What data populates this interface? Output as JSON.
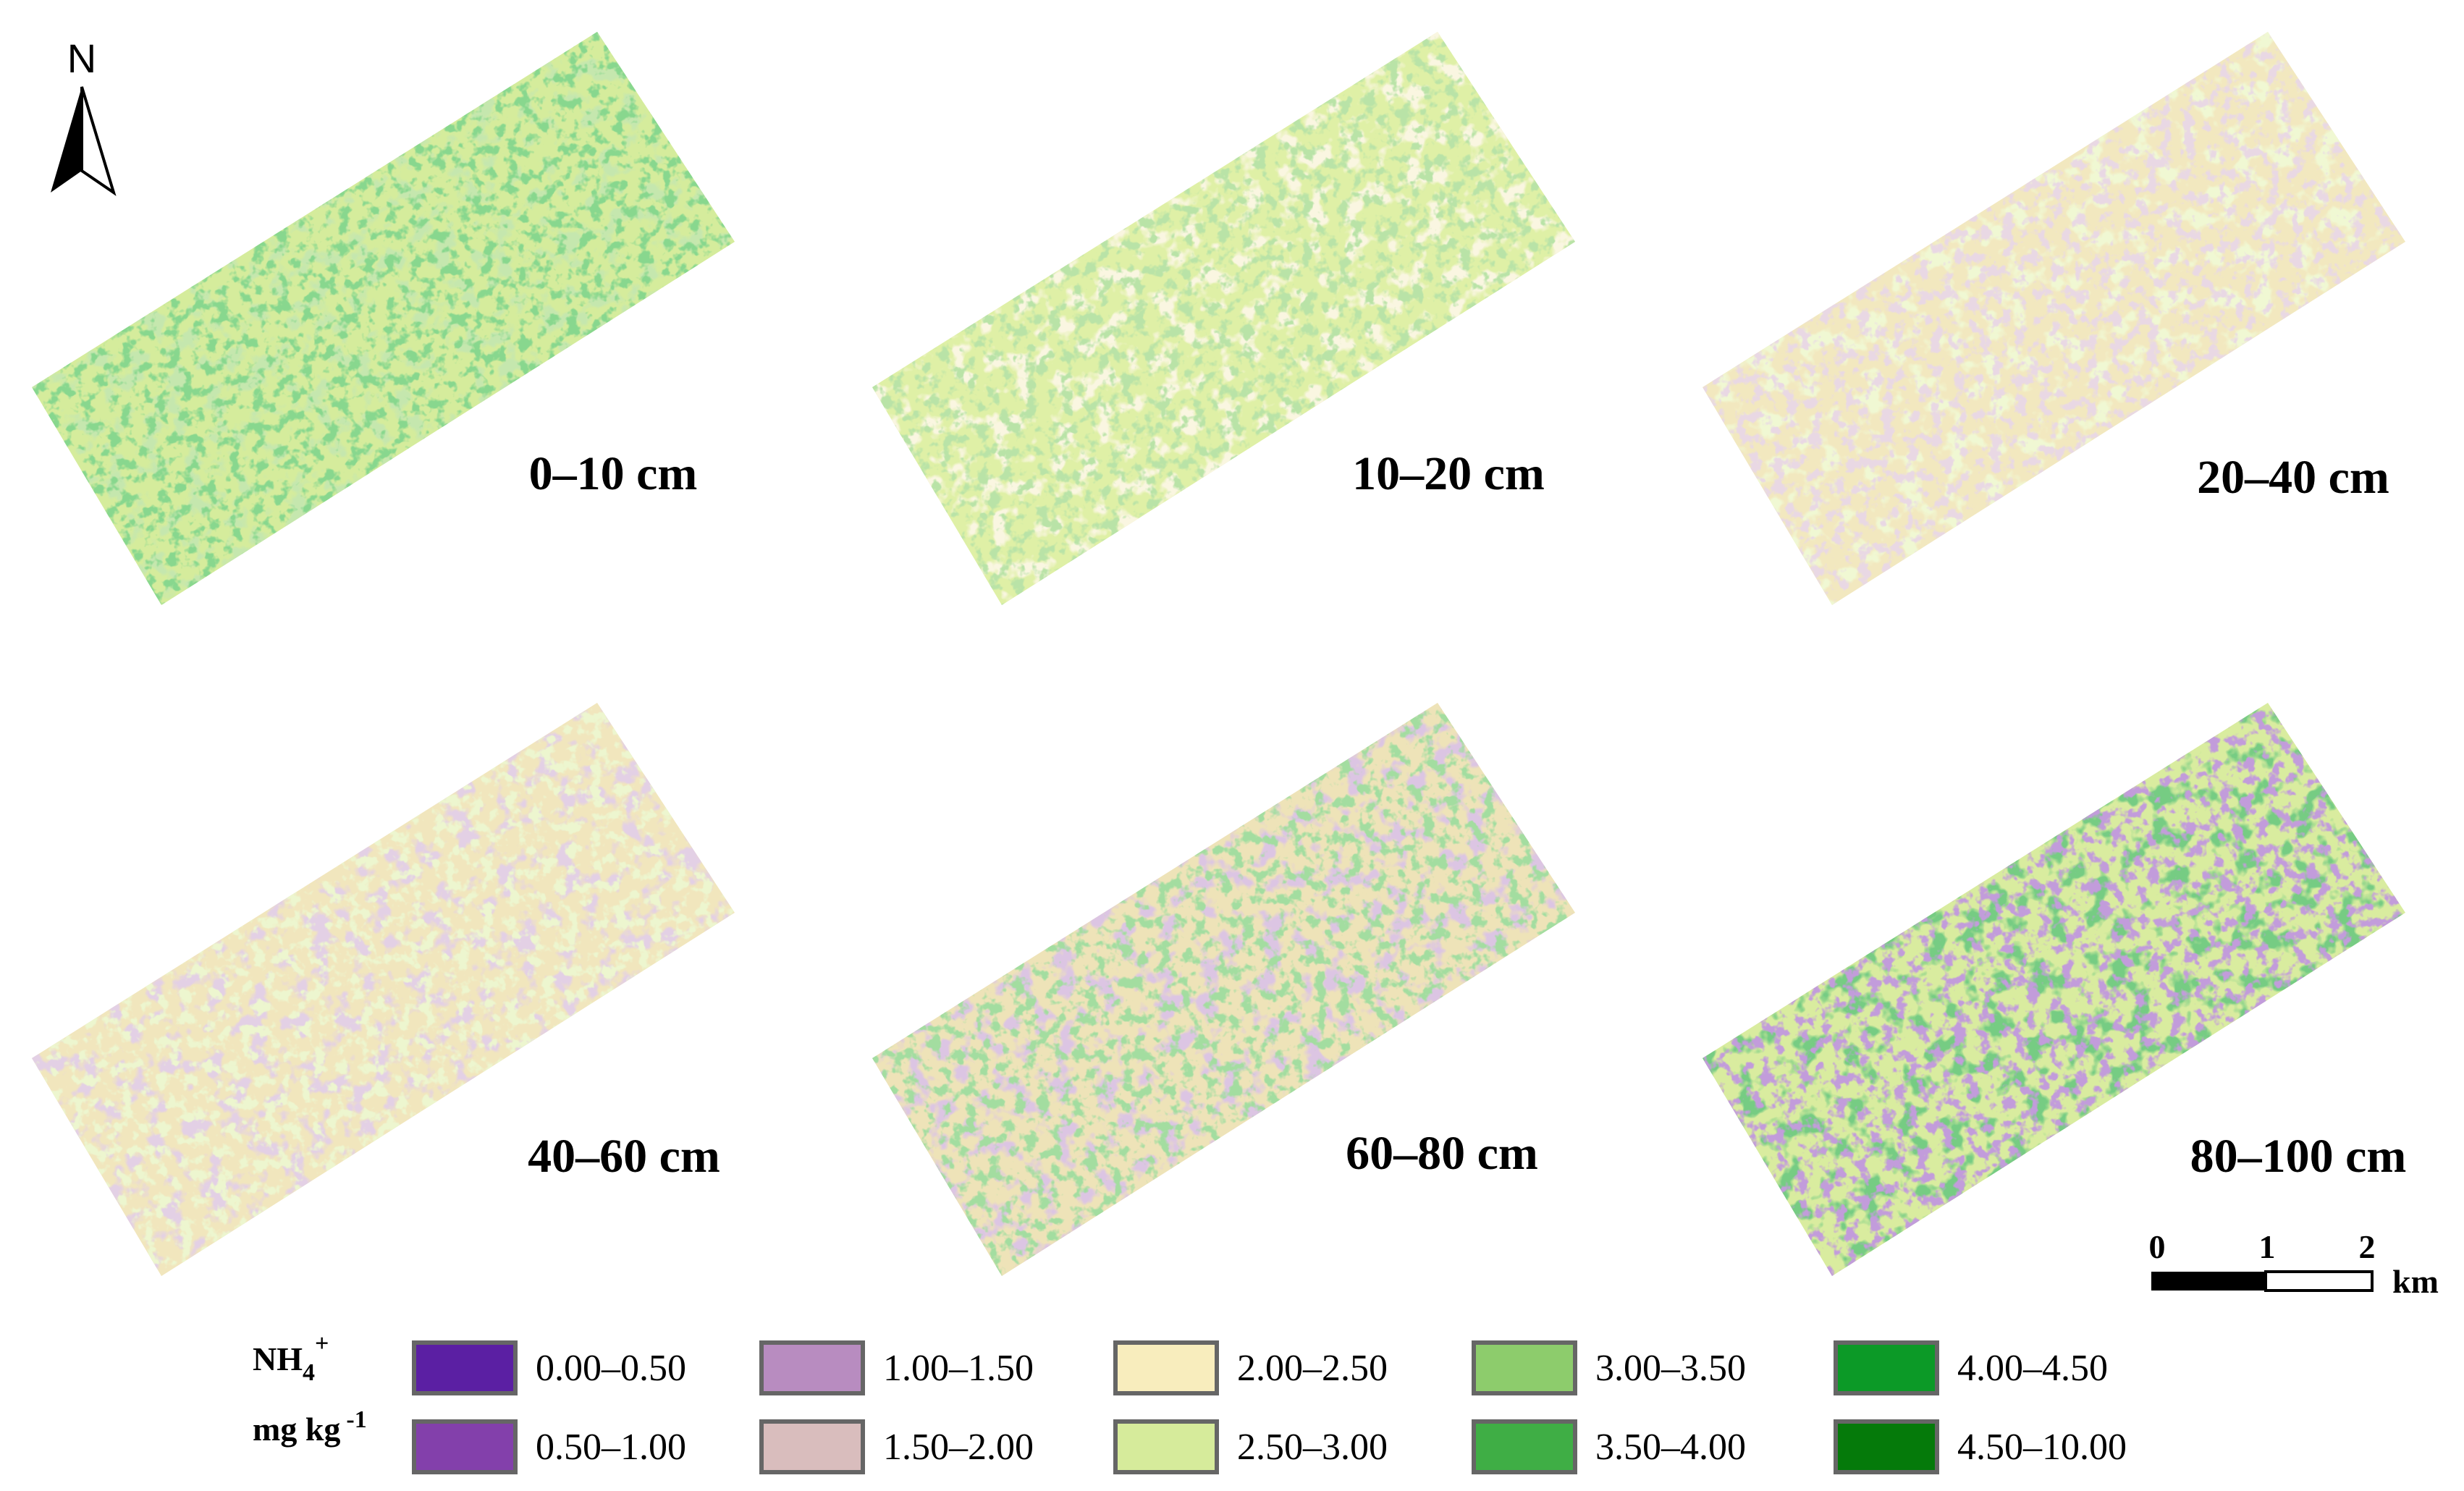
{
  "north": "N",
  "panels": [
    {
      "label": "0–10 cm"
    },
    {
      "label": "10–20 cm"
    },
    {
      "label": "20–40 cm"
    },
    {
      "label": "40–60 cm"
    },
    {
      "label": "60–80 cm"
    },
    {
      "label": "80–100 cm"
    }
  ],
  "scale_bar": {
    "ticks": [
      "0",
      "1",
      "2"
    ],
    "unit": "km"
  },
  "legend": {
    "title": {
      "base": "NH",
      "sub": "4",
      "sup": "+"
    },
    "unit": {
      "base": "mg kg",
      "sup": "-1"
    },
    "classes": [
      {
        "label": "0.00–0.50",
        "color": "#5b1fa3"
      },
      {
        "label": "0.50–1.00",
        "color": "#8340ab"
      },
      {
        "label": "1.00–1.50",
        "color": "#b88cc0"
      },
      {
        "label": "1.50–2.00",
        "color": "#d9bdbd"
      },
      {
        "label": "2.00–2.50",
        "color": "#f8edbd"
      },
      {
        "label": "2.50–3.00",
        "color": "#d6eb9b"
      },
      {
        "label": "3.00–3.50",
        "color": "#8dcc6c"
      },
      {
        "label": "3.50–4.00",
        "color": "#3fae45"
      },
      {
        "label": "4.00–4.50",
        "color": "#0c9a27"
      },
      {
        "label": "4.50–10.00",
        "color": "#057a0a"
      }
    ]
  }
}
